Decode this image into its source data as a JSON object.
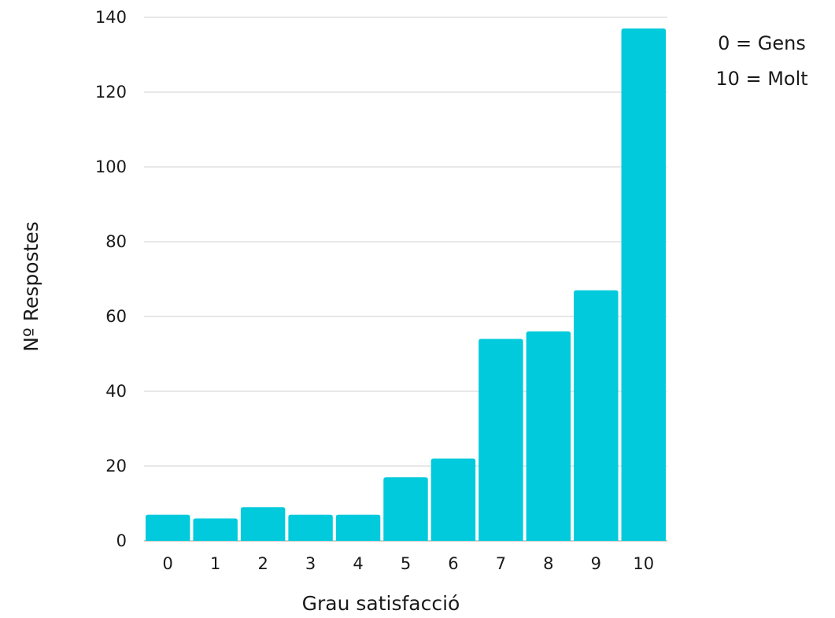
{
  "chart_data": {
    "type": "bar",
    "title": "",
    "xlabel": "Grau satisfacció",
    "ylabel": "Nº Respostes",
    "categories": [
      "0",
      "1",
      "2",
      "3",
      "4",
      "5",
      "6",
      "7",
      "8",
      "9",
      "10"
    ],
    "values": [
      7,
      6,
      9,
      7,
      7,
      17,
      22,
      54,
      56,
      67,
      137
    ],
    "ylim": [
      0,
      140
    ],
    "yticks": [
      "0",
      "20",
      "40",
      "60",
      "80",
      "100",
      "120",
      "140"
    ],
    "grid": true,
    "legend": "none",
    "bar_color": "#00CADB",
    "annotations": [
      "0 = Gens",
      "10 = Molt"
    ]
  }
}
